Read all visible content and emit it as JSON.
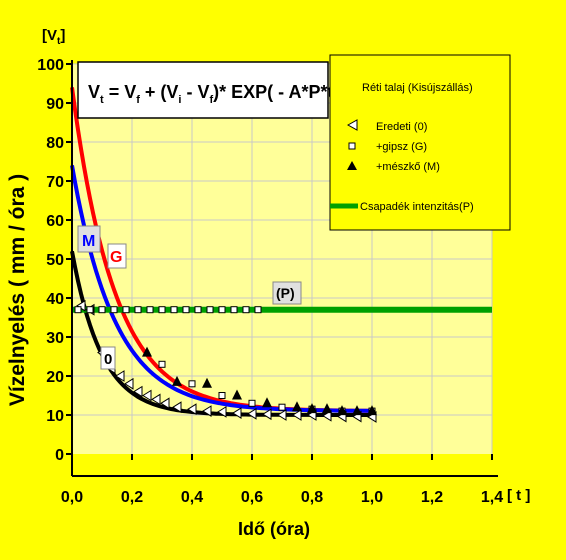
{
  "chart_data": {
    "type": "scatter",
    "ylabel": "Vízelnyelés ( mm / óra )",
    "ylabel_unit_prefix": "[V",
    "ylabel_unit_sub": "t",
    "ylabel_unit_suffix": "]",
    "xlabel": "Idő (óra)",
    "xlabel_unit": "[ t ]",
    "x_ticks": [
      "0,0",
      "0,2",
      "0,4",
      "0,6",
      "0,8",
      "1,0",
      "1,2",
      "1,4"
    ],
    "y_ticks": [
      "0",
      "10",
      "20",
      "30",
      "40",
      "50",
      "60",
      "70",
      "80",
      "90",
      "100"
    ],
    "xlim": [
      0,
      1.4
    ],
    "ylim": [
      0,
      100
    ],
    "grid": true,
    "formula": {
      "p1": "V",
      "s1": "t",
      "p2": " = V",
      "s2": "f",
      "p3": " + (V",
      "s3": "i",
      "p4": " - V",
      "s4": "f",
      "p5": ")* EXP( - A*P*t )"
    },
    "legend": {
      "title": "Réti talaj (Kisújszállás)",
      "entries": [
        "Eredeti  (0)",
        "+gipsz (G)",
        "+mészkő (M)",
        "Csapadék intenzitás(P)"
      ],
      "placement": "top-right"
    },
    "curve_labels": {
      "M": "M",
      "G": "G",
      "O": "0",
      "P": "(P)"
    },
    "colors": {
      "background": "#ffff00",
      "black": "#000000",
      "red": "#ff0000",
      "blue": "#0000ff",
      "green": "#00a000",
      "grid": "#c8c8c8"
    },
    "series": [
      {
        "name": "Eredeti  (0)",
        "marker": "triangle-left",
        "fit": {
          "vf": 10,
          "vi": 52,
          "k": 10
        },
        "points": [
          [
            0.03,
            38
          ],
          [
            0.06,
            37
          ],
          [
            0.1,
            26
          ],
          [
            0.13,
            22
          ],
          [
            0.16,
            20
          ],
          [
            0.19,
            18
          ],
          [
            0.22,
            16
          ],
          [
            0.25,
            15
          ],
          [
            0.28,
            14
          ],
          [
            0.31,
            13
          ],
          [
            0.35,
            12
          ],
          [
            0.4,
            11.5
          ],
          [
            0.45,
            11
          ],
          [
            0.5,
            10.8
          ],
          [
            0.55,
            10.5
          ],
          [
            0.6,
            10.3
          ],
          [
            0.65,
            10.2
          ],
          [
            0.7,
            10
          ],
          [
            0.75,
            10
          ],
          [
            0.8,
            10
          ],
          [
            0.85,
            9.8
          ],
          [
            0.9,
            9.6
          ],
          [
            0.95,
            9.6
          ],
          [
            1.0,
            9.5
          ]
        ]
      },
      {
        "name": "+gipsz (G)",
        "marker": "square",
        "fit": {
          "vf": 11,
          "vi": 94,
          "k": 7
        },
        "points": [
          [
            0.02,
            37
          ],
          [
            0.06,
            37
          ],
          [
            0.1,
            37
          ],
          [
            0.14,
            37
          ],
          [
            0.18,
            37
          ],
          [
            0.22,
            37
          ],
          [
            0.26,
            37
          ],
          [
            0.3,
            37
          ],
          [
            0.34,
            37
          ],
          [
            0.38,
            37
          ],
          [
            0.42,
            37
          ],
          [
            0.46,
            37
          ],
          [
            0.5,
            37
          ],
          [
            0.54,
            37
          ],
          [
            0.58,
            37
          ],
          [
            0.62,
            37
          ],
          [
            0.3,
            23
          ],
          [
            0.4,
            18
          ],
          [
            0.5,
            15
          ],
          [
            0.6,
            13
          ],
          [
            0.7,
            12
          ],
          [
            0.8,
            11.5
          ],
          [
            0.9,
            11
          ],
          [
            1.0,
            11
          ]
        ]
      },
      {
        "name": "+mészkő (M)",
        "marker": "triangle-up",
        "fit": {
          "vf": 11,
          "vi": 74,
          "k": 7
        },
        "points": [
          [
            0.25,
            26
          ],
          [
            0.35,
            18.5
          ],
          [
            0.45,
            18
          ],
          [
            0.55,
            15
          ],
          [
            0.65,
            13
          ],
          [
            0.75,
            12
          ],
          [
            0.8,
            11.5
          ],
          [
            0.85,
            11.5
          ],
          [
            0.9,
            11
          ],
          [
            0.95,
            11
          ],
          [
            1.0,
            11
          ]
        ]
      },
      {
        "name": "Csapadék intenzitás(P)",
        "constant": 37
      }
    ]
  }
}
